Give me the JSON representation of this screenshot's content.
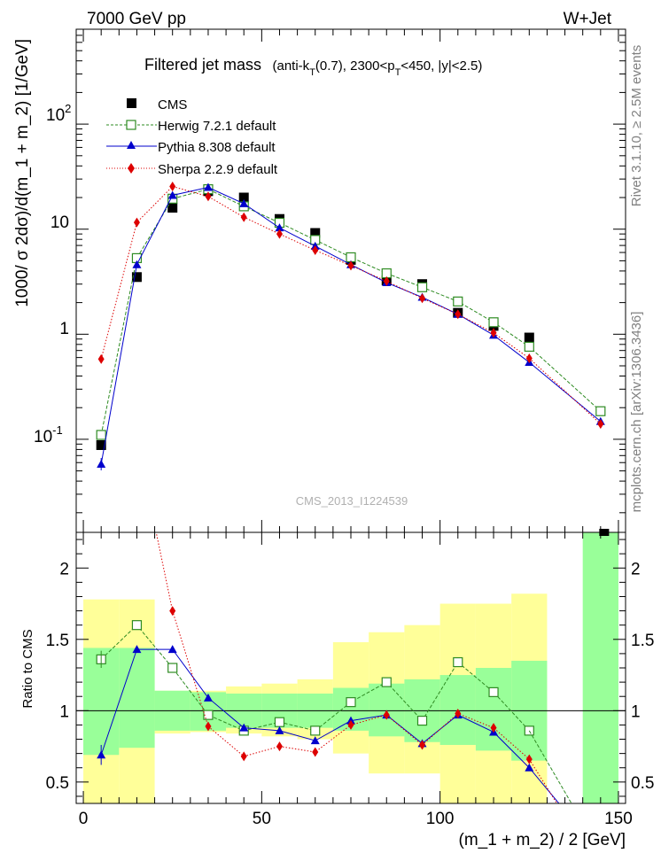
{
  "header": {
    "left": "7000 GeV pp",
    "right": "W+Jet"
  },
  "title": {
    "main": "Filtered jet mass",
    "sub_prefix": "(anti-k",
    "sub_T1": "T",
    "sub_mid": "(0.7), 2300<p",
    "sub_T2": "T",
    "sub_end": "<450, |y|<2.5)"
  },
  "side_labels": {
    "rivet": "Rivet 3.1.10, ≥ 2.5M events",
    "mcplots": "mcplots.cern.ch [arXiv:1306.3436]"
  },
  "watermark": "CMS_2013_I1224539",
  "colors": {
    "data": "#000000",
    "herwig": "#2e8b22",
    "pythia": "#0000cc",
    "sherpa": "#dd0000",
    "band_green": "#99ff99",
    "band_yellow": "#ffff99"
  },
  "chart_data": [
    {
      "type": "line",
      "ylabel": "1000/ σ 2dσ)/d(m_1 + m_2) [1/GeV]",
      "yscale": "log",
      "ylim": [
        0.013,
        800
      ],
      "xlim": [
        -2,
        152
      ],
      "ytick_labels": {
        "exp_e": "-1",
        "exp_f": "2",
        "base": "10",
        "t_ten": "10",
        "t_one": "1"
      },
      "legend": {
        "cms": "CMS",
        "herwig": "Herwig 7.2.1 default",
        "pythia": "Pythia 8.308 default",
        "sherpa": "Sherpa 2.2.9 default"
      },
      "x": [
        5,
        15,
        25,
        35,
        45,
        55,
        65,
        75,
        85,
        95,
        105,
        115,
        125,
        145
      ],
      "series": [
        {
          "name": "CMS",
          "values": [
            0.088,
            3.5,
            16,
            23,
            20,
            12.5,
            9.2,
            5.1,
            3.25,
            3.0,
            1.6,
            1.2,
            0.93,
            null
          ]
        },
        {
          "name": "Herwig 7.2.1 default",
          "values": [
            0.11,
            5.3,
            19.5,
            24,
            16.5,
            11.5,
            7.9,
            5.4,
            3.8,
            2.8,
            2.05,
            1.3,
            0.76,
            0.185
          ]
        },
        {
          "name": "Pythia 8.308 default",
          "values": [
            0.058,
            4.6,
            21,
            25,
            17.5,
            10.3,
            6.9,
            4.6,
            3.1,
            2.25,
            1.55,
            0.98,
            0.54,
            0.148
          ]
        },
        {
          "name": "Sherpa 2.2.9 default",
          "values": [
            0.58,
            11.6,
            25.5,
            20.5,
            13,
            9,
            6.3,
            4.5,
            3.2,
            2.2,
            1.55,
            1.03,
            0.59,
            0.14
          ]
        }
      ]
    },
    {
      "type": "line",
      "xlabel": "(m_1 + m_2) / 2 [GeV]",
      "ylabel": "Ratio to CMS",
      "ylim": [
        0.35,
        2.25
      ],
      "xlim": [
        -2,
        152
      ],
      "xtick_labels": [
        "0",
        "50",
        "100",
        "150"
      ],
      "ytick_labels": [
        "0.5",
        "1",
        "1.5",
        "2"
      ],
      "x": [
        5,
        15,
        25,
        35,
        45,
        55,
        65,
        75,
        85,
        95,
        105,
        115,
        125,
        145
      ],
      "series": [
        {
          "name": "Herwig 7.2.1 default",
          "values": [
            1.36,
            1.6,
            1.3,
            0.97,
            0.86,
            0.92,
            0.86,
            1.06,
            1.2,
            0.93,
            1.34,
            1.13,
            0.86,
            null
          ]
        },
        {
          "name": "Pythia 8.308 default",
          "values": [
            0.69,
            1.43,
            1.43,
            1.09,
            0.88,
            0.86,
            0.79,
            0.93,
            0.97,
            0.77,
            0.97,
            0.85,
            0.6,
            null
          ]
        },
        {
          "name": "Sherpa 2.2.9 default",
          "values": [
            null,
            null,
            1.7,
            0.89,
            0.68,
            0.75,
            0.71,
            0.9,
            0.97,
            0.76,
            0.98,
            0.88,
            0.66,
            null
          ]
        }
      ],
      "uncertainty_bands": {
        "edges": [
          0,
          10,
          20,
          30,
          40,
          50,
          60,
          70,
          80,
          90,
          100,
          110,
          120,
          130,
          140,
          150
        ],
        "green_lo": [
          0.69,
          0.74,
          0.86,
          0.86,
          0.88,
          0.88,
          0.88,
          0.86,
          0.82,
          0.78,
          0.76,
          0.72,
          0.65,
          null,
          0.35
        ],
        "green_hi": [
          1.44,
          1.44,
          1.14,
          1.13,
          1.12,
          1.12,
          1.12,
          1.16,
          1.19,
          1.22,
          1.25,
          1.3,
          1.35,
          null,
          2.25
        ],
        "yellow_lo": [
          0.35,
          0.35,
          0.84,
          0.85,
          0.84,
          0.82,
          0.8,
          0.7,
          0.56,
          0.56,
          0.35,
          0.35,
          0.35,
          null,
          null
        ],
        "yellow_hi": [
          1.78,
          1.78,
          1.14,
          1.14,
          1.17,
          1.19,
          1.22,
          1.48,
          1.55,
          1.6,
          1.75,
          1.75,
          1.82,
          null,
          null
        ]
      },
      "extra": {
        "cms_marker_x": 146
      }
    }
  ]
}
